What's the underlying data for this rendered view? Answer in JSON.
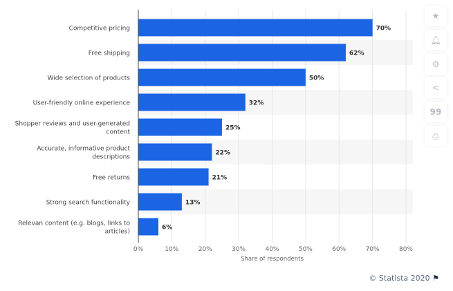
{
  "chart_data": {
    "type": "bar",
    "orientation": "horizontal",
    "categories": [
      "Competitive pricing",
      "Free shipping",
      "Wide selection of products",
      "User-friendly online experience",
      "Shopper reviews and user-generated content",
      "Accurate, informative product descriptions",
      "Free returns",
      "Strong search functionality",
      "Relevan content (e.g. blogs, links to articles)"
    ],
    "category_lines": [
      [
        "Competitive pricing"
      ],
      [
        "Free shipping"
      ],
      [
        "Wide selection of products"
      ],
      [
        "User-friendly online experience"
      ],
      [
        "Shopper reviews and user-generated",
        "content"
      ],
      [
        "Accurate, informative product",
        "descriptions"
      ],
      [
        "Free returns"
      ],
      [
        "Strong search functionality"
      ],
      [
        "Relevan content (e.g. blogs, links to",
        "articles)"
      ]
    ],
    "values": [
      70,
      62,
      50,
      32,
      25,
      22,
      21,
      13,
      6
    ],
    "data_labels": [
      "70%",
      "62%",
      "50%",
      "32%",
      "25%",
      "22%",
      "21%",
      "13%",
      "6%"
    ],
    "xlabel": "Share of respondents",
    "xlim": [
      0,
      80
    ],
    "xticks": [
      "0%",
      "10%",
      "20%",
      "30%",
      "40%",
      "50%",
      "60%",
      "70%",
      "80%"
    ],
    "grid": true,
    "bar_color": "#1b64e4"
  },
  "credit": "© Statista 2020",
  "sidebar_icons": [
    "star-icon",
    "bell-icon",
    "gear-icon",
    "share-icon",
    "quote-icon",
    "print-icon"
  ]
}
